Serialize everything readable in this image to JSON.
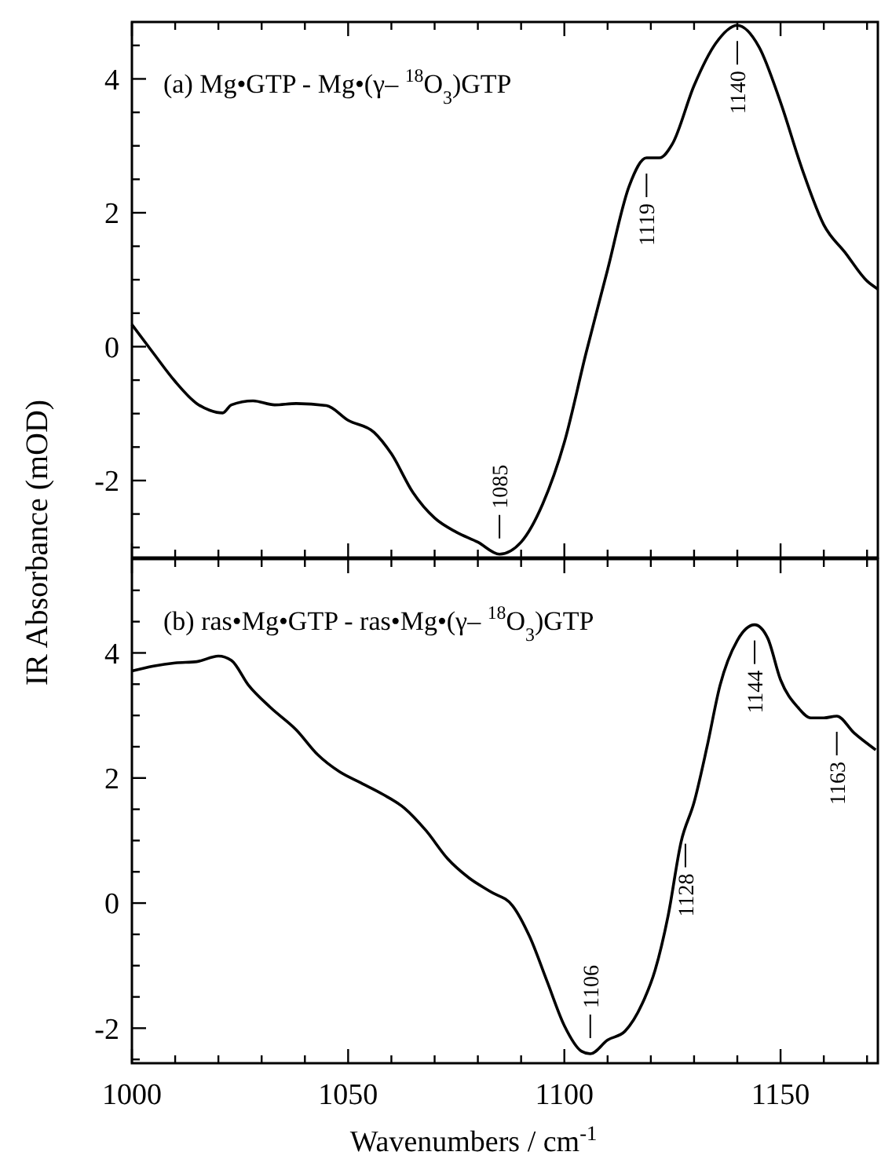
{
  "chart_data": [
    {
      "type": "line",
      "title": "(a) Mg•GTP - Mg•(γ– $^{18}$O$_{3}$)GTP",
      "xlim": [
        1000,
        1172.5
      ],
      "ylim": [
        -3.15,
        4.85
      ],
      "tick_labels": "y",
      "xticks": [
        1000,
        {
          "value": 1010,
          "label": null
        },
        {
          "value": 1020,
          "label": null
        },
        {
          "value": 1030,
          "label": null
        },
        {
          "value": 1040,
          "label": null
        },
        1050,
        {
          "value": 1060,
          "label": null
        },
        {
          "value": 1070,
          "label": null
        },
        {
          "value": 1080,
          "label": null
        },
        {
          "value": 1090,
          "label": null
        },
        1100,
        {
          "value": 1110,
          "label": null
        },
        {
          "value": 1120,
          "label": null
        },
        {
          "value": 1130,
          "label": null
        },
        {
          "value": 1140,
          "label": null
        },
        1150,
        {
          "value": 1160,
          "label": null
        },
        {
          "value": 1170,
          "label": null
        }
      ],
      "yticks": [
        {
          "value": -3,
          "label": null
        },
        {
          "value": -2.5,
          "label": null
        },
        -2,
        {
          "value": -1.5,
          "label": null
        },
        {
          "value": -1,
          "label": null
        },
        {
          "value": -0.5,
          "label": null
        },
        0,
        {
          "value": 0.5,
          "label": null
        },
        {
          "value": 1,
          "label": null
        },
        {
          "value": 1.5,
          "label": null
        },
        2,
        {
          "value": 2.5,
          "label": null
        },
        {
          "value": 3,
          "label": null
        },
        {
          "value": 3.5,
          "label": null
        },
        4,
        {
          "value": 4.5,
          "label": null
        }
      ],
      "series": [
        {
          "color": "#000000",
          "x": [
            1000,
            1005,
            1010,
            1015,
            1018,
            1021,
            1023,
            1028,
            1033,
            1038,
            1045,
            1050,
            1056,
            1060,
            1065,
            1070,
            1075,
            1080,
            1085,
            1090,
            1095,
            1100,
            1105,
            1110,
            1115,
            1119,
            1122,
            1125,
            1130,
            1135,
            1140,
            1145,
            1150,
            1155,
            1160,
            1165,
            1170,
            1172.5
          ],
          "values": [
            0.33,
            -0.1,
            -0.52,
            -0.85,
            -0.95,
            -0.99,
            -0.87,
            -0.81,
            -0.87,
            -0.85,
            -0.88,
            -1.1,
            -1.28,
            -1.6,
            -2.18,
            -2.56,
            -2.77,
            -2.92,
            -3.1,
            -2.92,
            -2.35,
            -1.43,
            -0.1,
            1.15,
            2.4,
            2.82,
            2.82,
            3.03,
            3.9,
            4.53,
            4.8,
            4.48,
            3.65,
            2.65,
            1.82,
            1.4,
            0.98,
            0.86
          ]
        }
      ],
      "annotations": [
        {
          "text": "1085",
          "x": 1085,
          "y": -3.1
        },
        {
          "text": "1119",
          "x": 1119,
          "y": 2.82
        },
        {
          "text": "1140",
          "x": 1140,
          "y": 4.8
        }
      ]
    },
    {
      "type": "line",
      "title": "(b) ras•Mg•GTP - ras•Mg•(γ– $^{18}$O$_{3}$)GTP",
      "xlabel": "Wavenumbers / cm$^{-1}$",
      "ylabel": "IR Absorbance (mOD)",
      "xlim": [
        1000,
        1172.5
      ],
      "ylim": [
        -2.56,
        5.5
      ],
      "xticks": [
        1000,
        {
          "value": 1010,
          "label": null
        },
        {
          "value": 1020,
          "label": null
        },
        {
          "value": 1030,
          "label": null
        },
        {
          "value": 1040,
          "label": null
        },
        1050,
        {
          "value": 1060,
          "label": null
        },
        {
          "value": 1070,
          "label": null
        },
        {
          "value": 1080,
          "label": null
        },
        {
          "value": 1090,
          "label": null
        },
        1100,
        {
          "value": 1110,
          "label": null
        },
        {
          "value": 1120,
          "label": null
        },
        {
          "value": 1130,
          "label": null
        },
        {
          "value": 1140,
          "label": null
        },
        1150,
        {
          "value": 1160,
          "label": null
        },
        {
          "value": 1170,
          "label": null
        }
      ],
      "yticks": [
        {
          "value": -2.5,
          "label": null
        },
        -2,
        {
          "value": -1.5,
          "label": null
        },
        {
          "value": -1,
          "label": null
        },
        {
          "value": -0.5,
          "label": null
        },
        0,
        {
          "value": 0.5,
          "label": null
        },
        {
          "value": 1,
          "label": null
        },
        {
          "value": 1.5,
          "label": null
        },
        2,
        {
          "value": 2.5,
          "label": null
        },
        {
          "value": 3,
          "label": null
        },
        {
          "value": 3.5,
          "label": null
        },
        4,
        {
          "value": 4.5,
          "label": null
        },
        {
          "value": 5,
          "label": null
        }
      ],
      "series": [
        {
          "color": "#000000",
          "x": [
            1000,
            1005,
            1010,
            1015,
            1020,
            1023,
            1027,
            1032,
            1038,
            1043,
            1048,
            1053,
            1058,
            1063,
            1068,
            1073,
            1078,
            1083,
            1088,
            1092,
            1096,
            1100,
            1104,
            1106,
            1110,
            1114,
            1118,
            1121,
            1124,
            1127,
            1130,
            1133,
            1136,
            1140,
            1144,
            1147,
            1150,
            1154,
            1157,
            1160,
            1163,
            1167,
            1172
          ],
          "values": [
            3.71,
            3.79,
            3.84,
            3.86,
            3.95,
            3.88,
            3.48,
            3.13,
            2.77,
            2.37,
            2.1,
            1.92,
            1.74,
            1.52,
            1.16,
            0.71,
            0.4,
            0.18,
            -0.04,
            -0.54,
            -1.25,
            -1.96,
            -2.37,
            -2.41,
            -2.19,
            -2.05,
            -1.61,
            -1.07,
            -0.2,
            0.98,
            1.61,
            2.5,
            3.48,
            4.2,
            4.45,
            4.24,
            3.57,
            3.13,
            2.96,
            2.96,
            2.99,
            2.72,
            2.45
          ]
        }
      ],
      "annotations": [
        {
          "text": "1106",
          "x": 1106,
          "y": -2.41
        },
        {
          "text": "1128",
          "x": 1128,
          "y": 1.2
        },
        {
          "text": "1144",
          "x": 1144,
          "y": 4.45
        },
        {
          "text": "1163",
          "x": 1163,
          "y": 2.99
        }
      ]
    }
  ]
}
